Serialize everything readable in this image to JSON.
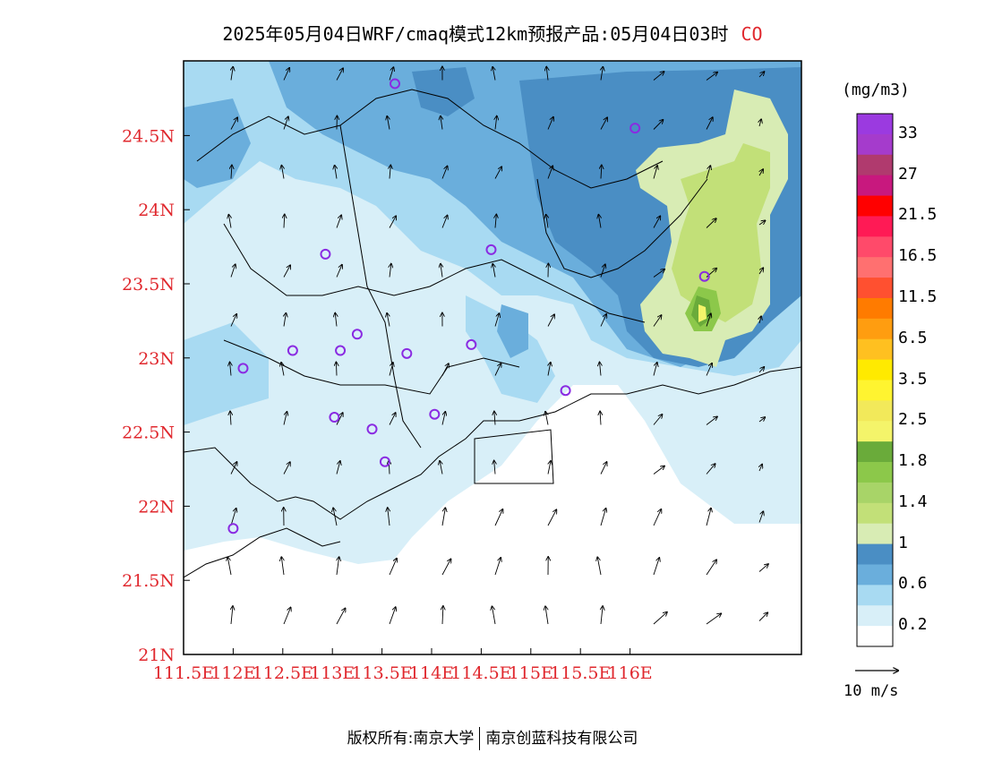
{
  "title": {
    "text": "2025年05月04日WRF/cmaq模式12km预报产品:05月04日03时",
    "species": "CO"
  },
  "map": {
    "x_ticks": [
      "111.5E",
      "112E",
      "112.5E",
      "113E",
      "113.5E",
      "114E",
      "114.5E",
      "115E",
      "115.5E",
      "116E"
    ],
    "y_ticks": [
      "24.5N",
      "24N",
      "23.5N",
      "23N",
      "22.5N",
      "22N",
      "21.5N",
      "21N"
    ],
    "tick_color": "#e0282e",
    "stations": [
      {
        "lon": 113.63,
        "lat": 24.85
      },
      {
        "lon": 116.05,
        "lat": 24.55
      },
      {
        "lon": 112.93,
        "lat": 23.7
      },
      {
        "lon": 114.6,
        "lat": 23.73
      },
      {
        "lon": 116.75,
        "lat": 23.55
      },
      {
        "lon": 112.1,
        "lat": 22.93
      },
      {
        "lon": 112.6,
        "lat": 23.05
      },
      {
        "lon": 113.08,
        "lat": 23.05
      },
      {
        "lon": 113.25,
        "lat": 23.16
      },
      {
        "lon": 113.75,
        "lat": 23.03
      },
      {
        "lon": 114.4,
        "lat": 23.09
      },
      {
        "lon": 113.02,
        "lat": 22.6
      },
      {
        "lon": 113.4,
        "lat": 22.52
      },
      {
        "lon": 114.03,
        "lat": 22.62
      },
      {
        "lon": 113.53,
        "lat": 22.3
      },
      {
        "lon": 115.35,
        "lat": 22.78
      },
      {
        "lon": 112.0,
        "lat": 21.85
      }
    ]
  },
  "colorbar": {
    "unit": "(mg/m3)",
    "labels": [
      "33",
      "27",
      "21.5",
      "16.5",
      "11.5",
      "6.5",
      "3.5",
      "2.5",
      "1.8",
      "1.4",
      "1",
      "0.6",
      "0.2"
    ],
    "colors_top_to_bottom": [
      "#9b3ae0",
      "#a53bcc",
      "#b03a6e",
      "#c8187e",
      "#ff0000",
      "#ff1a55",
      "#ff4a6a",
      "#ff7070",
      "#ff5030",
      "#ff7b00",
      "#ff9d10",
      "#ffc020",
      "#ffea00",
      "#fff430",
      "#f2e95a",
      "#f4f46a",
      "#6aab3a",
      "#8cc84a",
      "#a8d468",
      "#c2e078",
      "#d8ecb4",
      "#4a8ec4",
      "#6aaedc",
      "#a8daf2",
      "#d8eff8",
      "#ffffff"
    ]
  },
  "wind_reference": {
    "label": "10 m/s"
  },
  "footer": {
    "left": "版权所有:南京大学",
    "right": "南京创蓝科技有限公司"
  }
}
